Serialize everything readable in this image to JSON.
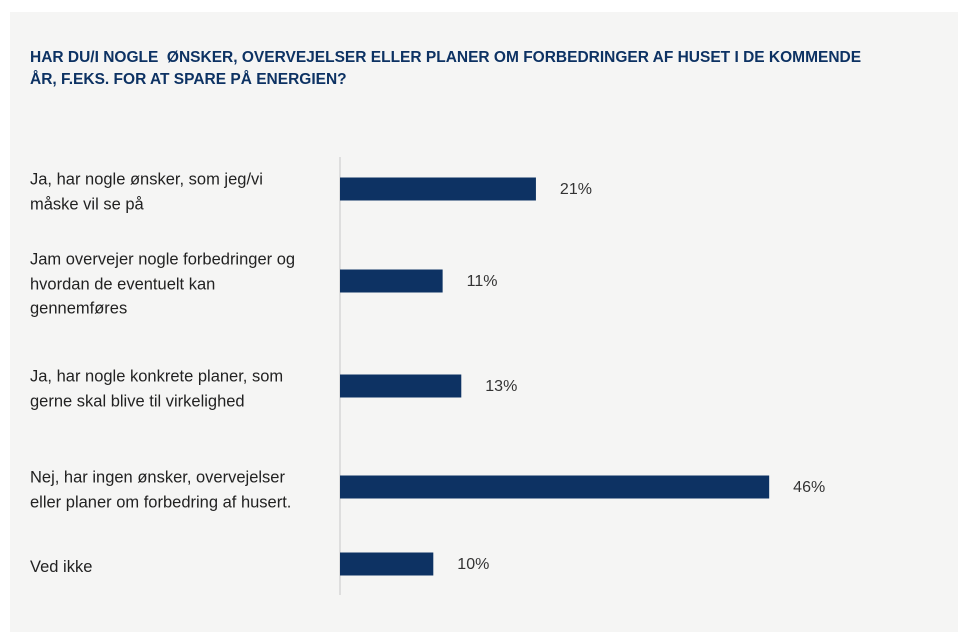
{
  "chart_data": {
    "type": "bar",
    "orientation": "horizontal",
    "title": "HAR DU/I NOGLE  ØNSKER, OVERVEJELSER ELLER PLANER OM FORBEDRINGER AF HUSET I DE KOMMENDE ÅR, F.EKS. FOR AT SPARE PÅ ENERGIEN?",
    "categories": [
      "Ja, har nogle ønsker, som jeg/vi måske vil se på",
      "Jam overvejer nogle forbedringer og hvordan de eventuelt kan gennemføres",
      "Ja, har nogle konkrete planer, som gerne skal blive til virkelighed",
      "Nej, har ingen ønsker, overvejelser eller planer om forbedring af husert.",
      "Ved ikke"
    ],
    "values": [
      21,
      11,
      13,
      46,
      10
    ],
    "value_labels": [
      "21%",
      "11%",
      "13%",
      "46%",
      "10%"
    ],
    "color": "#0d3263"
  }
}
